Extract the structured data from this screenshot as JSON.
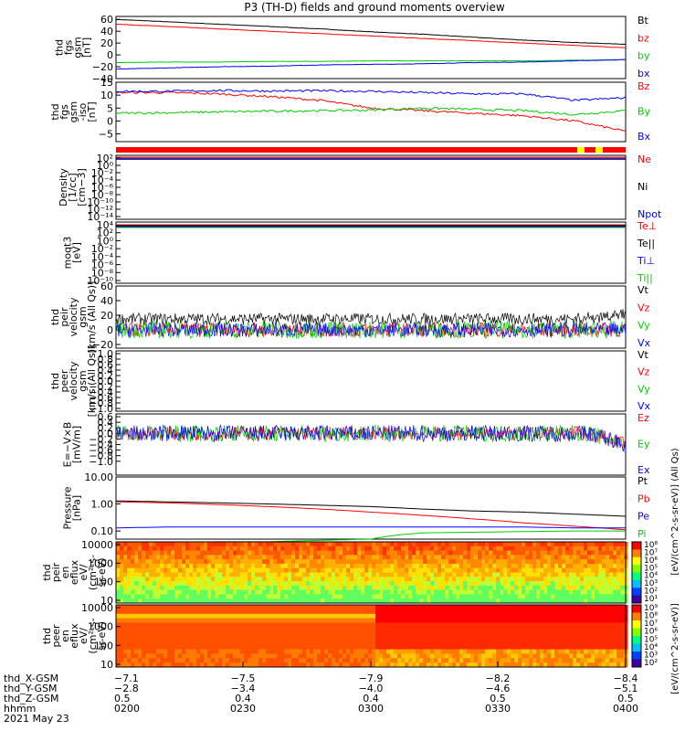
{
  "title": "P3 (TH-D) fields and ground moments overview",
  "chart_data": [
    {
      "type": "line",
      "ylabel": "thd\nfgs\ngsm\n[nT]",
      "ylim": [
        -40,
        65
      ],
      "ticks": [
        "60",
        "40",
        "20",
        "0",
        "−20",
        "−40"
      ],
      "tick_values": [
        60,
        40,
        20,
        0,
        -20,
        -40
      ],
      "series": [
        {
          "name": "Bt",
          "color": "#000000",
          "x": [
            0,
            0.1,
            0.2,
            0.3,
            0.4,
            0.5,
            0.6,
            0.7,
            0.8,
            0.9,
            1
          ],
          "y": [
            60,
            56,
            52,
            48,
            44,
            39,
            35,
            30,
            25,
            21,
            18
          ]
        },
        {
          "name": "bz",
          "color": "#ff0000",
          "x": [
            0,
            0.1,
            0.2,
            0.3,
            0.4,
            0.5,
            0.6,
            0.7,
            0.8,
            0.9,
            1
          ],
          "y": [
            52,
            48,
            44,
            40,
            36,
            32,
            28,
            24,
            20,
            16,
            12
          ]
        },
        {
          "name": "by",
          "color": "#00cc00",
          "x": [
            0,
            0.1,
            0.2,
            0.3,
            0.4,
            0.5,
            0.6,
            0.7,
            0.8,
            0.9,
            1
          ],
          "y": [
            -13,
            -12,
            -12,
            -11,
            -11,
            -10,
            -10,
            -10,
            -10,
            -9,
            -8
          ]
        },
        {
          "name": "bx",
          "color": "#0000ff",
          "x": [
            0,
            0.1,
            0.2,
            0.3,
            0.4,
            0.5,
            0.6,
            0.7,
            0.8,
            0.9,
            1
          ],
          "y": [
            -24,
            -22,
            -20,
            -19,
            -17,
            -16,
            -15,
            -13,
            -12,
            -10,
            -8
          ]
        }
      ]
    },
    {
      "type": "line",
      "ylabel": "thd\nfgs\ngsm\n-iso\n[nT]",
      "ylim": [
        -8,
        15
      ],
      "ticks": [
        "15",
        "10",
        "5",
        "0",
        "−5"
      ],
      "tick_values": [
        15,
        10,
        5,
        0,
        -5
      ],
      "series": [
        {
          "name": "Bz",
          "color": "#ff0000",
          "x": [
            0,
            0.1,
            0.2,
            0.3,
            0.4,
            0.5,
            0.6,
            0.7,
            0.8,
            0.9,
            1
          ],
          "y": [
            11,
            11,
            10.5,
            9.5,
            8,
            5,
            4,
            3,
            2,
            0,
            -4
          ]
        },
        {
          "name": "By",
          "color": "#00cc00",
          "x": [
            0,
            0.1,
            0.2,
            0.3,
            0.4,
            0.5,
            0.6,
            0.7,
            0.8,
            0.9,
            1
          ],
          "y": [
            3,
            3.2,
            3.5,
            3.8,
            4,
            4.2,
            5,
            4.5,
            4,
            2.5,
            4
          ]
        },
        {
          "name": "Bx",
          "color": "#0000ff",
          "x": [
            0,
            0.1,
            0.2,
            0.3,
            0.4,
            0.5,
            0.6,
            0.7,
            0.8,
            0.9,
            1
          ],
          "y": [
            11.5,
            11.5,
            11.8,
            11.6,
            11.7,
            11.5,
            11,
            10.5,
            10.5,
            8,
            9
          ]
        }
      ]
    },
    {
      "type": "line",
      "ylabel": "Density\n[1/cc]\n[cm−3]",
      "ticks": [
        "10²",
        "10⁰",
        "10⁻²",
        "10⁻⁴",
        "10⁻⁶",
        "10⁻⁸",
        "10⁻¹⁰",
        "10⁻¹²",
        "10⁻¹⁴"
      ],
      "series": [
        {
          "name": "Ne",
          "color": "#ff0000"
        },
        {
          "name": "Ni",
          "color": "#000000"
        },
        {
          "name": "Npot",
          "color": "#0000ff"
        }
      ]
    },
    {
      "type": "line",
      "ylabel": "moqt3\n[eV]",
      "ticks": [
        "10⁴",
        "10²",
        "10⁰",
        "10⁻²",
        "10⁻⁴",
        "10⁻⁶",
        "10⁻⁸",
        "10⁻¹⁰"
      ],
      "series": [
        {
          "name": "Te⊥",
          "color": "#ff0000"
        },
        {
          "name": "Te||",
          "color": "#000000"
        },
        {
          "name": "Ti⊥",
          "color": "#0000ff"
        },
        {
          "name": "Ti||",
          "color": "#00cc00"
        }
      ]
    },
    {
      "type": "line",
      "ylabel": "thd\npeir\nvelocity\ngsm\n[km/s (All Qs)]",
      "ylim": [
        -25,
        60
      ],
      "ticks": [
        "60",
        "40",
        "20",
        "0",
        "−20"
      ],
      "tick_values": [
        60,
        40,
        20,
        0,
        -20
      ],
      "series": [
        {
          "name": "Vt",
          "color": "#000000"
        },
        {
          "name": "Vz",
          "color": "#ff0000"
        },
        {
          "name": "Vy",
          "color": "#00cc00"
        },
        {
          "name": "Vx",
          "color": "#0000ff"
        }
      ]
    },
    {
      "type": "line",
      "ylabel": "thd\npeer\nvelocity\ngsm\n[km/s (All Qs)]",
      "ticks": [
        "1.0",
        "0.8",
        "0.6",
        "0.4",
        "0.2",
        "0.0",
        "−0.2",
        "−0.4",
        "−0.6",
        "−0.8",
        "−1.0"
      ],
      "series": [
        {
          "name": "Vt",
          "color": "#000000"
        },
        {
          "name": "Vz",
          "color": "#ff0000"
        },
        {
          "name": "Vy",
          "color": "#00cc00"
        },
        {
          "name": "Vx",
          "color": "#0000ff"
        }
      ]
    },
    {
      "type": "line",
      "ylabel": "E=−V×B\n[mV/m]",
      "ylim": [
        -1.5,
        0.7
      ],
      "ticks": [
        "0.6",
        "0.4",
        "0.2",
        "0.0",
        "−0.2",
        "−0.4",
        "−0.6",
        "−0.8",
        "−1.0"
      ],
      "tick_values": [
        0.6,
        0.4,
        0.2,
        0,
        -0.2,
        -0.4,
        -0.6,
        -0.8,
        -1.0
      ],
      "series": [
        {
          "name": "Ez",
          "color": "#ff0000"
        },
        {
          "name": "Ey",
          "color": "#00cc00"
        },
        {
          "name": "Ex",
          "color": "#0000ff"
        }
      ]
    },
    {
      "type": "line",
      "ylabel": "Pressure\n[nPa]",
      "ylim_log": [
        0.05,
        10
      ],
      "ticks": [
        "10.00",
        "1.00",
        "0.10"
      ],
      "tick_values": [
        10,
        1,
        0.1
      ],
      "series": [
        {
          "name": "Pt",
          "color": "#000000",
          "x": [
            0,
            0.1,
            0.2,
            0.3,
            0.4,
            0.5,
            0.6,
            0.7,
            0.8,
            0.9,
            1
          ],
          "y": [
            1.3,
            1.2,
            1.1,
            1.0,
            0.9,
            0.8,
            0.65,
            0.55,
            0.5,
            0.42,
            0.35
          ]
        },
        {
          "name": "Pb",
          "color": "#ff0000",
          "x": [
            0,
            0.1,
            0.2,
            0.3,
            0.4,
            0.5,
            0.6,
            0.7,
            0.8,
            0.9,
            1
          ],
          "y": [
            1.2,
            1.1,
            0.95,
            0.8,
            0.65,
            0.5,
            0.38,
            0.28,
            0.2,
            0.15,
            0.11
          ]
        },
        {
          "name": "Pe",
          "color": "#0000ff",
          "x": [
            0,
            0.1,
            0.2,
            0.3,
            0.4,
            0.5,
            0.6,
            0.7,
            0.8,
            0.9,
            1
          ],
          "y": [
            0.13,
            0.14,
            0.14,
            0.14,
            0.14,
            0.14,
            0.14,
            0.14,
            0.14,
            0.13,
            0.13
          ]
        },
        {
          "name": "Pi",
          "color": "#00cc00",
          "x": [
            0,
            0.1,
            0.2,
            0.3,
            0.4,
            0.5,
            0.55,
            0.6,
            0.7,
            0.8,
            0.9,
            1
          ],
          "y": [
            0.035,
            0.035,
            0.04,
            0.04,
            0.045,
            0.05,
            0.07,
            0.085,
            0.09,
            0.095,
            0.1,
            0.1
          ]
        }
      ]
    },
    {
      "type": "heatmap",
      "ylabel": "thd\npeir\nen\neflux\neV/\n(cm²-s-\nsr-eV)",
      "ticks": [
        "10000",
        "1000",
        "100",
        "10"
      ],
      "colorbar_ticks": [
        "10⁸",
        "10⁷",
        "10⁶",
        "10⁵",
        "10⁴",
        "10³",
        "10²",
        "10¹"
      ]
    },
    {
      "type": "heatmap",
      "ylabel": "thd\npeer\nen\neflux\neV/\n(cm²-s-\nsr-eV)",
      "ticks": [
        "10000",
        "1000",
        "100",
        "10"
      ],
      "colorbar_ticks": [
        "10⁹",
        "10⁸",
        "10⁷",
        "10⁶",
        "10⁵",
        "10⁴",
        "10³",
        "10²"
      ]
    }
  ],
  "colorbar_label": "[eV/(cm^2-s-sr-eV)]",
  "colorbar_label_peir": "[eV/(cm^2-s-sr-eV)] (All Qs)",
  "xaxis": {
    "rows": [
      {
        "label": "thd_X-GSM",
        "values": [
          "−7.1",
          "−7.5",
          "−7.9",
          "−8.2",
          "−8.4"
        ]
      },
      {
        "label": "thd_Y-GSM",
        "values": [
          "−2.8",
          "−3.4",
          "−4.0",
          "−4.6",
          "−5.1"
        ]
      },
      {
        "label": "thd_Z-GSM",
        "values": [
          "0.5",
          "0.4",
          "0.4",
          "0.5",
          "0.5"
        ]
      },
      {
        "label": "hhmm",
        "values": [
          "0200",
          "0230",
          "0300",
          "0330",
          "0400"
        ]
      }
    ],
    "date": "2021 May 23"
  }
}
